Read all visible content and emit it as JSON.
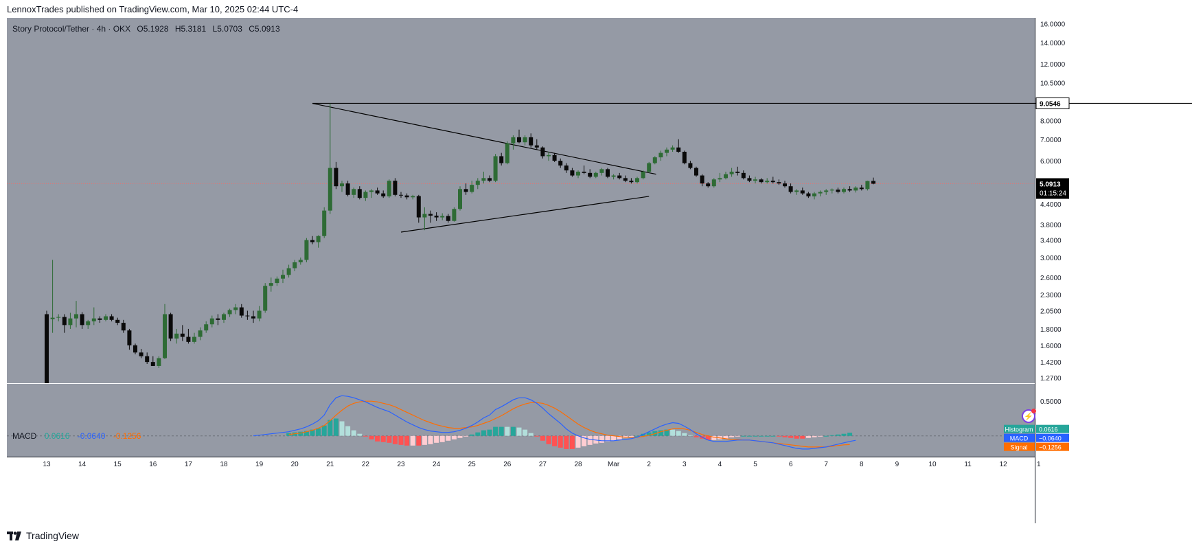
{
  "header": {
    "published": "LennoxTrades published on TradingView.com, Mar 10, 2025 02:44 UTC-4"
  },
  "legend": {
    "symbol": "Story Protocol/Tether · 4h · OKX",
    "open": "O5.1928",
    "high": "H5.3181",
    "low": "L5.0703",
    "close": "C5.0913"
  },
  "macd_legend": {
    "name": "MACD",
    "histogram": "0.0616",
    "macd": "-0.0640",
    "signal": "-0.1256"
  },
  "price_axis": {
    "ticks": [
      "16.0000",
      "14.0000",
      "12.0000",
      "10.5000",
      "8.0000",
      "7.0000",
      "6.0000",
      "4.4000",
      "3.8000",
      "3.4000",
      "3.0000",
      "2.6000",
      "2.3000",
      "2.0500",
      "1.8000",
      "1.6000",
      "1.4200",
      "1.2700"
    ],
    "hline_label": "9.0546",
    "last_price_label": "5.0913",
    "countdown_label": "01:15:24"
  },
  "macd_axis": {
    "ticks": [
      "0.5000"
    ],
    "histogram_label": "Histogram",
    "histogram_value": "0.0616",
    "macd_label": "MACD",
    "macd_value": "−0.0640",
    "signal_label": "Signal",
    "signal_value": "−0.1256"
  },
  "time_axis": {
    "labels": [
      "13",
      "14",
      "15",
      "16",
      "17",
      "18",
      "19",
      "20",
      "21",
      "22",
      "23",
      "24",
      "25",
      "26",
      "27",
      "28",
      "Mar",
      "2",
      "3",
      "4",
      "5",
      "6",
      "7",
      "8",
      "9",
      "10",
      "11",
      "12",
      "1"
    ]
  },
  "footer": {
    "brand": "TradingView"
  },
  "colors": {
    "background": "#959aa5",
    "up": "#2e6b35",
    "down": "#0a0a0a",
    "macd_line": "#2962ff",
    "signal_line": "#ff6d00",
    "hist_up_strong": "#26a69a",
    "hist_up_weak": "#b2dfdb",
    "hist_down_strong": "#ff5252",
    "hist_down_weak": "#ffcdd2"
  },
  "chart_data": {
    "type": "candlestick",
    "title": "Story Protocol/Tether · 4h · OKX",
    "y_scale": "log",
    "ylim": [
      1.22,
      16.7
    ],
    "x_categories": [
      "13",
      "14",
      "15",
      "16",
      "17",
      "18",
      "19",
      "20",
      "21",
      "22",
      "23",
      "24",
      "25",
      "26",
      "27",
      "28",
      "Mar",
      "2",
      "3",
      "4",
      "5",
      "6",
      "7",
      "8",
      "9",
      "10"
    ],
    "candles": [
      [
        2.0,
        2.05,
        1.22,
        1.22
      ],
      [
        1.93,
        2.95,
        1.75,
        1.95
      ],
      [
        1.95,
        2.0,
        1.9,
        1.96
      ],
      [
        1.96,
        2.0,
        1.75,
        1.85
      ],
      [
        1.85,
        2.02,
        1.8,
        1.94
      ],
      [
        1.94,
        2.2,
        1.82,
        2.0
      ],
      [
        2.0,
        2.03,
        1.8,
        1.85
      ],
      [
        1.85,
        1.92,
        1.8,
        1.9
      ],
      [
        1.9,
        2.1,
        1.85,
        1.94
      ],
      [
        1.94,
        1.97,
        1.88,
        1.92
      ],
      [
        1.92,
        2.0,
        1.9,
        1.97
      ],
      [
        1.97,
        2.0,
        1.9,
        1.92
      ],
      [
        1.92,
        1.95,
        1.85,
        1.88
      ],
      [
        1.88,
        1.92,
        1.75,
        1.78
      ],
      [
        1.78,
        1.8,
        1.55,
        1.6
      ],
      [
        1.6,
        1.62,
        1.5,
        1.52
      ],
      [
        1.52,
        1.56,
        1.46,
        1.48
      ],
      [
        1.48,
        1.52,
        1.4,
        1.42
      ],
      [
        1.42,
        1.48,
        1.38,
        1.38
      ],
      [
        1.38,
        1.48,
        1.36,
        1.46
      ],
      [
        1.46,
        2.15,
        1.45,
        2.0
      ],
      [
        2.0,
        2.02,
        1.65,
        1.68
      ],
      [
        1.68,
        1.8,
        1.62,
        1.74
      ],
      [
        1.74,
        1.85,
        1.65,
        1.7
      ],
      [
        1.7,
        1.8,
        1.62,
        1.64
      ],
      [
        1.64,
        1.75,
        1.62,
        1.7
      ],
      [
        1.7,
        1.82,
        1.66,
        1.78
      ],
      [
        1.78,
        1.9,
        1.75,
        1.86
      ],
      [
        1.86,
        1.98,
        1.82,
        1.94
      ],
      [
        1.94,
        2.0,
        1.85,
        1.92
      ],
      [
        1.92,
        2.02,
        1.88,
        2.0
      ],
      [
        2.0,
        2.08,
        1.96,
        2.06
      ],
      [
        2.06,
        2.15,
        2.0,
        2.1
      ],
      [
        2.1,
        2.15,
        1.95,
        1.98
      ],
      [
        1.98,
        2.05,
        1.92,
        1.97
      ],
      [
        1.97,
        2.05,
        1.88,
        1.94
      ],
      [
        1.94,
        2.12,
        1.9,
        2.05
      ],
      [
        2.05,
        2.5,
        2.02,
        2.45
      ],
      [
        2.45,
        2.6,
        2.35,
        2.5
      ],
      [
        2.5,
        2.62,
        2.45,
        2.58
      ],
      [
        2.58,
        2.75,
        2.5,
        2.65
      ],
      [
        2.65,
        2.85,
        2.6,
        2.78
      ],
      [
        2.78,
        2.95,
        2.72,
        2.9
      ],
      [
        2.9,
        3.0,
        2.85,
        2.95
      ],
      [
        2.95,
        3.45,
        2.9,
        3.4
      ],
      [
        3.4,
        3.5,
        3.3,
        3.35
      ],
      [
        3.35,
        3.52,
        3.22,
        3.5
      ],
      [
        3.5,
        4.3,
        3.45,
        4.2
      ],
      [
        4.2,
        9.05,
        4.1,
        5.7
      ],
      [
        5.7,
        5.95,
        4.9,
        5.0
      ],
      [
        5.0,
        5.2,
        4.8,
        5.1
      ],
      [
        5.1,
        5.2,
        4.65,
        4.7
      ],
      [
        4.7,
        4.95,
        4.6,
        4.9
      ],
      [
        4.9,
        5.0,
        4.55,
        4.6
      ],
      [
        4.6,
        4.85,
        4.5,
        4.8
      ],
      [
        4.8,
        4.9,
        4.6,
        4.85
      ],
      [
        4.85,
        4.95,
        4.7,
        4.75
      ],
      [
        4.75,
        4.85,
        4.6,
        4.65
      ],
      [
        4.65,
        5.25,
        4.6,
        5.2
      ],
      [
        5.2,
        5.3,
        4.65,
        4.7
      ],
      [
        4.7,
        4.8,
        4.6,
        4.68
      ],
      [
        4.68,
        4.75,
        4.55,
        4.62
      ],
      [
        4.62,
        4.7,
        4.55,
        4.66
      ],
      [
        4.66,
        4.7,
        3.85,
        4.0
      ],
      [
        4.0,
        4.3,
        3.65,
        4.1
      ],
      [
        4.1,
        4.2,
        3.85,
        4.05
      ],
      [
        4.05,
        4.15,
        3.9,
        4.0
      ],
      [
        4.0,
        4.12,
        3.92,
        4.04
      ],
      [
        4.04,
        4.1,
        3.85,
        3.9
      ],
      [
        3.9,
        4.3,
        3.88,
        4.25
      ],
      [
        4.25,
        5.0,
        4.2,
        4.9
      ],
      [
        4.9,
        5.1,
        4.7,
        4.8
      ],
      [
        4.8,
        5.2,
        4.75,
        5.05
      ],
      [
        5.05,
        5.3,
        4.9,
        5.2
      ],
      [
        5.2,
        5.55,
        5.1,
        5.3
      ],
      [
        5.3,
        5.4,
        5.15,
        5.2
      ],
      [
        5.2,
        6.3,
        5.15,
        6.2
      ],
      [
        6.2,
        6.35,
        5.8,
        5.9
      ],
      [
        5.9,
        6.9,
        5.85,
        6.8
      ],
      [
        6.8,
        7.2,
        6.5,
        7.1
      ],
      [
        7.1,
        7.5,
        6.8,
        6.85
      ],
      [
        6.85,
        7.2,
        6.7,
        7.1
      ],
      [
        7.1,
        7.3,
        6.6,
        6.7
      ],
      [
        6.7,
        7.0,
        6.5,
        6.6
      ],
      [
        6.6,
        6.65,
        6.1,
        6.2
      ],
      [
        6.2,
        6.4,
        6.0,
        6.25
      ],
      [
        6.25,
        6.35,
        5.95,
        6.0
      ],
      [
        6.0,
        6.1,
        5.7,
        5.8
      ],
      [
        5.8,
        5.9,
        5.5,
        5.6
      ],
      [
        5.6,
        5.7,
        5.35,
        5.4
      ],
      [
        5.4,
        5.6,
        5.3,
        5.55
      ],
      [
        5.55,
        5.8,
        5.45,
        5.5
      ],
      [
        5.5,
        5.65,
        5.3,
        5.35
      ],
      [
        5.35,
        5.55,
        5.3,
        5.5
      ],
      [
        5.5,
        5.7,
        5.4,
        5.65
      ],
      [
        5.65,
        5.7,
        5.3,
        5.35
      ],
      [
        5.35,
        5.45,
        5.25,
        5.4
      ],
      [
        5.4,
        5.5,
        5.25,
        5.3
      ],
      [
        5.3,
        5.4,
        5.15,
        5.2
      ],
      [
        5.2,
        5.3,
        5.1,
        5.15
      ],
      [
        5.15,
        5.35,
        5.1,
        5.3
      ],
      [
        5.3,
        5.6,
        5.25,
        5.55
      ],
      [
        5.55,
        5.95,
        5.5,
        5.9
      ],
      [
        5.9,
        6.2,
        5.85,
        6.15
      ],
      [
        6.15,
        6.45,
        6.0,
        6.35
      ],
      [
        6.35,
        6.6,
        6.2,
        6.5
      ],
      [
        6.5,
        6.7,
        6.4,
        6.6
      ],
      [
        6.6,
        7.0,
        6.35,
        6.4
      ],
      [
        6.4,
        6.45,
        5.85,
        5.9
      ],
      [
        5.9,
        6.0,
        5.65,
        5.7
      ],
      [
        5.7,
        5.75,
        5.35,
        5.4
      ],
      [
        5.4,
        5.45,
        5.0,
        5.1
      ],
      [
        5.1,
        5.15,
        4.95,
        5.0
      ],
      [
        5.0,
        5.3,
        4.95,
        5.25
      ],
      [
        5.25,
        5.5,
        5.15,
        5.3
      ],
      [
        5.3,
        5.55,
        5.25,
        5.45
      ],
      [
        5.45,
        5.7,
        5.35,
        5.55
      ],
      [
        5.55,
        5.75,
        5.4,
        5.5
      ],
      [
        5.5,
        5.6,
        5.25,
        5.3
      ],
      [
        5.3,
        5.4,
        5.15,
        5.2
      ],
      [
        5.2,
        5.35,
        5.1,
        5.25
      ],
      [
        5.25,
        5.3,
        5.1,
        5.15
      ],
      [
        5.15,
        5.3,
        5.1,
        5.2
      ],
      [
        5.2,
        5.35,
        5.1,
        5.15
      ],
      [
        5.15,
        5.25,
        5.05,
        5.1
      ],
      [
        5.1,
        5.2,
        4.95,
        5.0
      ],
      [
        5.0,
        5.1,
        4.75,
        4.8
      ],
      [
        4.8,
        4.9,
        4.7,
        4.85
      ],
      [
        4.85,
        4.95,
        4.7,
        4.75
      ],
      [
        4.75,
        4.8,
        4.6,
        4.65
      ],
      [
        4.65,
        4.8,
        4.55,
        4.75
      ],
      [
        4.75,
        4.85,
        4.65,
        4.8
      ],
      [
        4.8,
        4.9,
        4.7,
        4.85
      ],
      [
        4.85,
        4.92,
        4.75,
        4.88
      ],
      [
        4.88,
        4.95,
        4.75,
        4.8
      ],
      [
        4.8,
        4.95,
        4.75,
        4.9
      ],
      [
        4.9,
        5.0,
        4.8,
        4.85
      ],
      [
        4.85,
        5.0,
        4.78,
        4.95
      ],
      [
        4.95,
        5.05,
        4.85,
        4.9
      ],
      [
        4.9,
        5.2,
        4.85,
        5.19
      ],
      [
        5.1928,
        5.3181,
        5.0703,
        5.0913
      ]
    ],
    "lines": [
      {
        "name": "resistance",
        "x": [
          20.5,
          30.2
        ],
        "y": [
          9.05,
          5.45
        ]
      },
      {
        "name": "support",
        "x": [
          23.0,
          30.0
        ],
        "y": [
          3.6,
          4.65
        ]
      },
      {
        "name": "horizontal",
        "x": [
          20.5,
          32.0
        ],
        "y": [
          9.0546,
          9.0546
        ]
      }
    ],
    "macd": {
      "ylim": [
        -0.3,
        0.75
      ],
      "macd_line": [
        null,
        null,
        null,
        null,
        null,
        null,
        null,
        null,
        null,
        null,
        null,
        null,
        null,
        null,
        null,
        null,
        null,
        null,
        null,
        null,
        null,
        null,
        null,
        null,
        null,
        null,
        null,
        null,
        null,
        null,
        null,
        null,
        null,
        null,
        null,
        0.0,
        0.01,
        0.02,
        0.03,
        0.04,
        0.05,
        0.06,
        0.08,
        0.1,
        0.13,
        0.17,
        0.22,
        0.3,
        0.45,
        0.55,
        0.58,
        0.57,
        0.55,
        0.52,
        0.49,
        0.45,
        0.41,
        0.38,
        0.35,
        0.3,
        0.25,
        0.2,
        0.16,
        0.12,
        0.09,
        0.07,
        0.06,
        0.05,
        0.05,
        0.06,
        0.08,
        0.11,
        0.15,
        0.2,
        0.26,
        0.3,
        0.38,
        0.42,
        0.47,
        0.52,
        0.55,
        0.55,
        0.52,
        0.47,
        0.4,
        0.32,
        0.25,
        0.18,
        0.1,
        0.04,
        0.0,
        -0.03,
        -0.05,
        -0.06,
        -0.07,
        -0.07,
        -0.07,
        -0.06,
        -0.05,
        -0.04,
        -0.02,
        0.02,
        0.06,
        0.1,
        0.14,
        0.17,
        0.19,
        0.18,
        0.14,
        0.09,
        0.03,
        -0.02,
        -0.06,
        -0.08,
        -0.08,
        -0.08,
        -0.07,
        -0.06,
        -0.06,
        -0.06,
        -0.07,
        -0.08,
        -0.09,
        -0.1,
        -0.12,
        -0.14,
        -0.16,
        -0.18,
        -0.19,
        -0.19,
        -0.18,
        -0.17,
        -0.16,
        -0.14,
        -0.12,
        -0.1,
        -0.08,
        -0.064
      ],
      "signal_line": [
        null,
        null,
        null,
        null,
        null,
        null,
        null,
        null,
        null,
        null,
        null,
        null,
        null,
        null,
        null,
        null,
        null,
        null,
        null,
        null,
        null,
        null,
        null,
        null,
        null,
        null,
        null,
        null,
        null,
        null,
        null,
        null,
        null,
        null,
        null,
        null,
        null,
        null,
        null,
        null,
        null,
        0.02,
        0.03,
        0.04,
        0.06,
        0.08,
        0.11,
        0.15,
        0.22,
        0.3,
        0.37,
        0.43,
        0.47,
        0.49,
        0.5,
        0.5,
        0.49,
        0.47,
        0.45,
        0.42,
        0.38,
        0.34,
        0.3,
        0.26,
        0.22,
        0.19,
        0.16,
        0.14,
        0.12,
        0.11,
        0.11,
        0.12,
        0.13,
        0.15,
        0.18,
        0.21,
        0.25,
        0.29,
        0.34,
        0.39,
        0.43,
        0.46,
        0.48,
        0.48,
        0.47,
        0.44,
        0.4,
        0.35,
        0.29,
        0.23,
        0.17,
        0.12,
        0.08,
        0.05,
        0.03,
        0.01,
        0.0,
        -0.01,
        -0.02,
        -0.02,
        -0.02,
        -0.01,
        0.01,
        0.03,
        0.06,
        0.08,
        0.1,
        0.11,
        0.1,
        0.08,
        0.05,
        0.02,
        0.0,
        -0.02,
        -0.03,
        -0.04,
        -0.05,
        -0.05,
        -0.06,
        -0.06,
        -0.07,
        -0.08,
        -0.09,
        -0.1,
        -0.11,
        -0.12,
        -0.13,
        -0.14,
        -0.15,
        -0.16,
        -0.16,
        -0.16,
        -0.16,
        -0.15,
        -0.14,
        -0.13,
        -0.1256
      ]
    }
  }
}
